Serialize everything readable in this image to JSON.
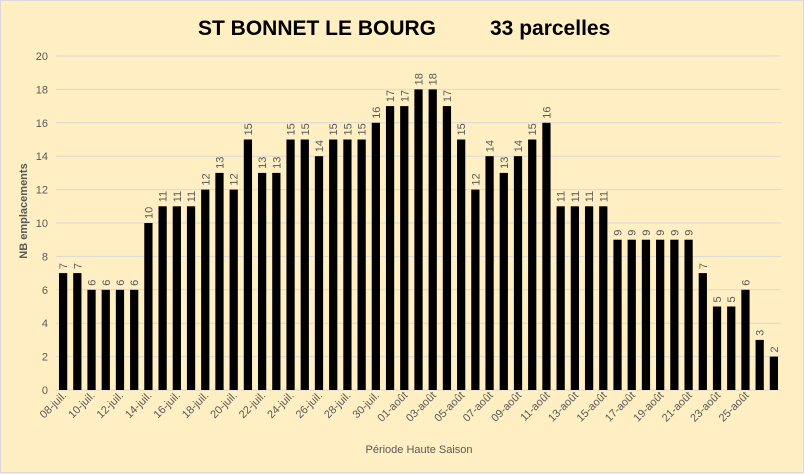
{
  "chart_data": {
    "type": "bar",
    "title": "ST BONNET LE BOURG",
    "subtitle": "33 parcelles",
    "xlabel": "Période Haute Saison",
    "ylabel": "NB emplacements",
    "ylim": [
      0,
      20
    ],
    "yticks": [
      0,
      2,
      4,
      6,
      8,
      10,
      12,
      14,
      16,
      18,
      20
    ],
    "grid": true,
    "legend": "none",
    "tick_labels": [
      "08-juil.",
      "10-juil.",
      "12-juil.",
      "14-juil.",
      "16-juil.",
      "18-juil.",
      "20-juil.",
      "22-juil.",
      "24-juil.",
      "26-juil.",
      "28-juil.",
      "30-juil.",
      "01-août",
      "03-août",
      "05-août",
      "07-août",
      "09-août",
      "11-août",
      "13-août",
      "15-août",
      "17-août",
      "19-août",
      "21-août",
      "23-août",
      "25-août"
    ],
    "values": [
      7,
      7,
      6,
      6,
      6,
      6,
      10,
      11,
      11,
      11,
      12,
      13,
      12,
      15,
      13,
      13,
      15,
      15,
      14,
      15,
      15,
      15,
      16,
      17,
      17,
      18,
      18,
      17,
      15,
      12,
      14,
      13,
      14,
      15,
      16,
      11,
      11,
      11,
      11,
      9,
      9,
      9,
      9,
      9,
      9,
      7,
      5,
      5,
      6,
      3,
      2
    ],
    "colors": {
      "bar": "#000000",
      "grid": "#d9d9d9",
      "text": "#595959",
      "background": "#ffefc2"
    }
  }
}
